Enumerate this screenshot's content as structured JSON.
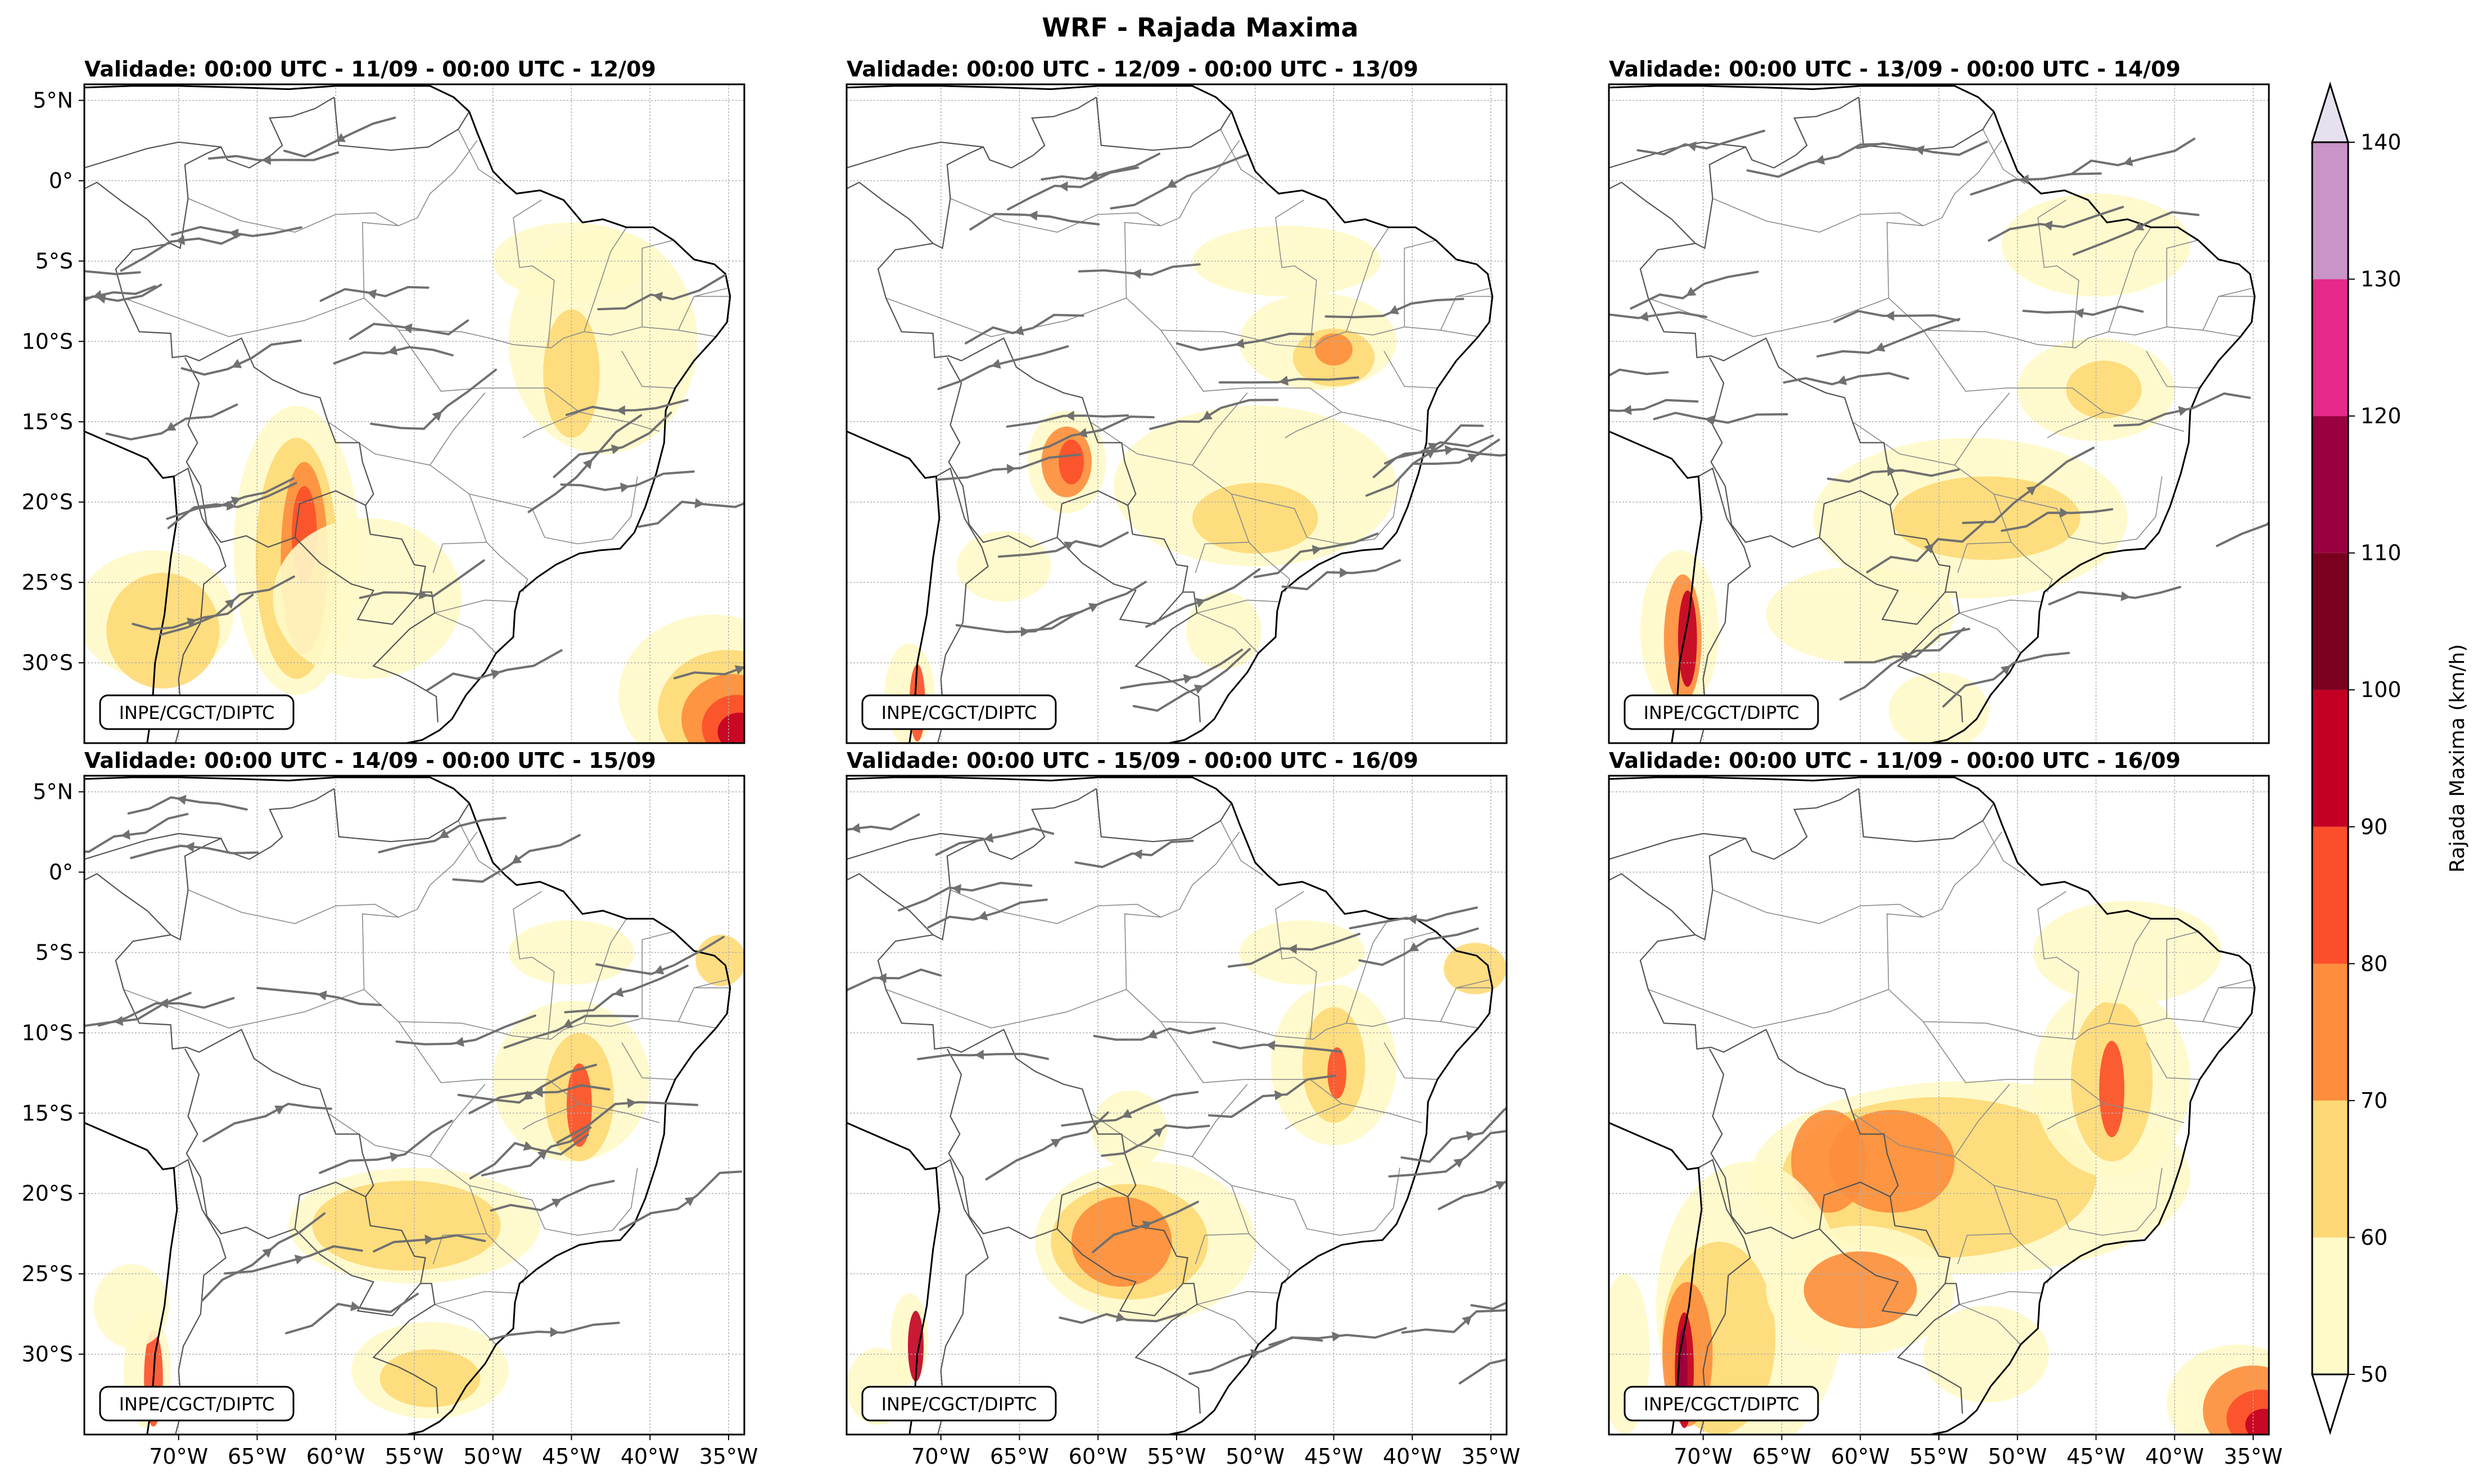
{
  "figure": {
    "title": "WRF - Rajada Maxima",
    "credit": "INPE/CGCT/DIPTC"
  },
  "panels": [
    {
      "title": "Validade: 00:00 UTC - 11/09 - 00:00 UTC - 12/09",
      "streamlines": true
    },
    {
      "title": "Validade: 00:00 UTC - 12/09 - 00:00 UTC - 13/09",
      "streamlines": true
    },
    {
      "title": "Validade: 00:00 UTC - 13/09 - 00:00 UTC - 14/09",
      "streamlines": true
    },
    {
      "title": "Validade: 00:00 UTC - 14/09 - 00:00 UTC - 15/09",
      "streamlines": true
    },
    {
      "title": "Validade: 00:00 UTC - 15/09 - 00:00 UTC - 16/09",
      "streamlines": true
    },
    {
      "title": "Validade: 00:00 UTC - 11/09 - 00:00 UTC - 16/09",
      "streamlines": false
    }
  ],
  "axes": {
    "lon_range": [
      -76,
      -34
    ],
    "lat_range": [
      -35,
      6
    ],
    "lon_ticks": [
      -70,
      -65,
      -60,
      -55,
      -50,
      -45,
      -40,
      -35
    ],
    "lon_labels": [
      "70°W",
      "65°W",
      "60°W",
      "55°W",
      "50°W",
      "45°W",
      "40°W",
      "35°W"
    ],
    "lat_ticks": [
      5,
      0,
      -5,
      -10,
      -15,
      -20,
      -25,
      -30
    ],
    "lat_labels": [
      "5°N",
      "0°",
      "5°S",
      "10°S",
      "15°S",
      "20°S",
      "25°S",
      "30°S"
    ]
  },
  "colorbar": {
    "label": "Rajada Maxima (km/h)",
    "levels": [
      50,
      60,
      70,
      80,
      90,
      100,
      110,
      120,
      130,
      140
    ],
    "level_labels": [
      "50",
      "60",
      "70",
      "80",
      "90",
      "100",
      "110",
      "120",
      "130",
      "140"
    ],
    "colors": [
      "#ffffcc",
      "#ffeda0",
      "#fed976",
      "#feb24c",
      "#fd8d3c",
      "#fc4e2a",
      "#e31a1c",
      "#bd0026",
      "#800026",
      "#9e0142",
      "#e7298a",
      "#c994c7"
    ],
    "band_colors": [
      "#fffac8",
      "#fed976",
      "#fd8d3c",
      "#fc4e2a",
      "#c30023",
      "#7a0020",
      "#98003f",
      "#e7298a",
      "#c994c7"
    ],
    "under_color": "#ffffff",
    "over_color": "#e7e1ef"
  },
  "map": {
    "coast_color": "#000000",
    "border_color": "#555555",
    "stream_color": "#707070",
    "grid_color": "#b0b0b0"
  }
}
